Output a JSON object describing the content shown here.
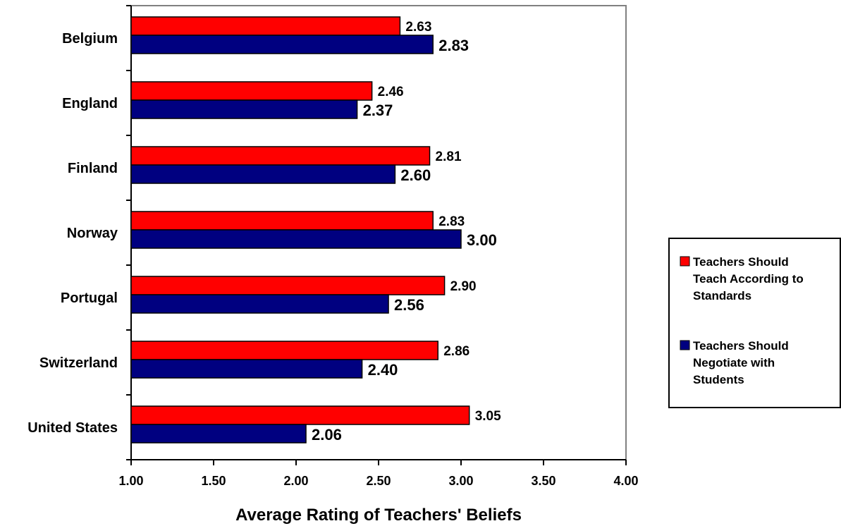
{
  "chart_data": {
    "type": "bar",
    "orientation": "horizontal",
    "categories": [
      "Belgium",
      "England",
      "Finland",
      "Norway",
      "Portugal",
      "Switzerland",
      "United States"
    ],
    "series": [
      {
        "name": "Teachers Should Teach According to Standards",
        "name_lines": [
          "Teachers Should",
          "Teach According to",
          "Standards"
        ],
        "color": "#ff0000",
        "values": [
          2.63,
          2.46,
          2.81,
          2.83,
          2.9,
          2.86,
          3.05
        ],
        "labels": [
          "2.63",
          "2.46",
          "2.81",
          "2.83",
          "2.90",
          "2.86",
          "3.05"
        ]
      },
      {
        "name": "Teachers Should Negotiate with Students",
        "name_lines": [
          "Teachers Should",
          "Negotiate with",
          "Students"
        ],
        "color": "#000080",
        "values": [
          2.83,
          2.37,
          2.6,
          3.0,
          2.56,
          2.4,
          2.06
        ],
        "labels": [
          "2.83",
          "2.37",
          "2.60",
          "3.00",
          "2.56",
          "2.40",
          "2.06"
        ]
      }
    ],
    "xlabel": "Average Rating of Teachers' Beliefs",
    "xlim": [
      1.0,
      4.0
    ],
    "xticks": [
      1.0,
      1.5,
      2.0,
      2.5,
      3.0,
      3.5,
      4.0
    ],
    "xtick_labels": [
      "1.00",
      "1.50",
      "2.00",
      "2.50",
      "3.00",
      "3.50",
      "4.00"
    ],
    "grid": false,
    "legend_position": "right"
  }
}
